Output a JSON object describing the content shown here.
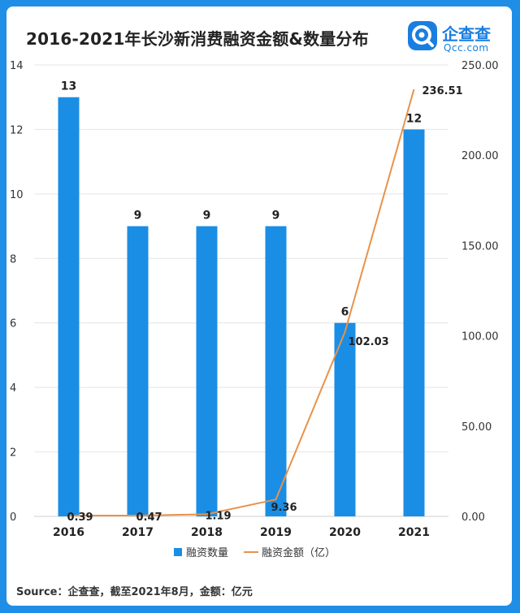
{
  "title": "2016-2021年长沙新消费融资金额&数量分布",
  "logo": {
    "name": "企查查",
    "sub": "Qcc.com"
  },
  "source": "Source：企查查，截至2021年8月，金额：亿元",
  "chart_data": {
    "type": "bar",
    "categories": [
      "2016",
      "2017",
      "2018",
      "2019",
      "2020",
      "2021"
    ],
    "series": [
      {
        "name": "融资数量",
        "type": "bar",
        "axis": "left",
        "values": [
          13,
          9,
          9,
          9,
          6,
          12
        ],
        "labels": [
          "13",
          "9",
          "9",
          "9",
          "6",
          "12"
        ]
      },
      {
        "name": "融资金额（亿）",
        "type": "line",
        "axis": "right",
        "values": [
          0.39,
          0.47,
          1.19,
          9.36,
          102.03,
          236.51
        ],
        "labels": [
          "0.39",
          "0.47",
          "1.19",
          "9.36",
          "102.03",
          "236.51"
        ]
      }
    ],
    "left_axis": {
      "ylim": [
        0,
        14
      ],
      "ticks": [
        "0",
        "2",
        "4",
        "6",
        "8",
        "10",
        "12",
        "14"
      ]
    },
    "right_axis": {
      "ylim": [
        0,
        250
      ],
      "ticks": [
        "0.00",
        "50.00",
        "100.00",
        "150.00",
        "200.00",
        "250.00"
      ]
    },
    "grid": true,
    "legend": "bottom",
    "colors": {
      "bar": "#1a8ee5",
      "line": "#e8924a",
      "grid": "#e4e4e4"
    }
  }
}
